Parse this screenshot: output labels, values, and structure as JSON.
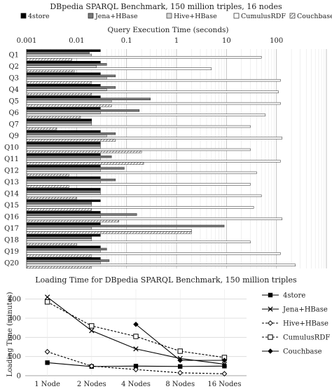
{
  "chart_data": [
    {
      "type": "bar",
      "orientation": "horizontal",
      "title": "DBpedia SPARQL Benchmark, 150 million triples, 16 nodes",
      "xlabel": "Query Execution Time (seconds)",
      "xscale": "log",
      "xlim": [
        0.001,
        1000
      ],
      "xticks": [
        "0.001",
        "0.01",
        "0.1",
        "1",
        "10",
        "100"
      ],
      "grid": true,
      "legend_position": "top",
      "categories": [
        "Q1",
        "Q2",
        "Q3",
        "Q4",
        "Q5",
        "Q6",
        "Q7",
        "Q9",
        "Q10",
        "Q11",
        "Q12",
        "Q13",
        "Q14",
        "Q15",
        "Q16",
        "Q17",
        "Q18",
        "Q19",
        "Q20"
      ],
      "series": [
        {
          "name": "4store",
          "pattern": "solid-black",
          "values": [
            0.03,
            0.03,
            0.03,
            0.03,
            0.03,
            0.03,
            0.02,
            0.03,
            0.03,
            0.03,
            0.03,
            0.03,
            0.03,
            0.03,
            0.03,
            0.03,
            0.03,
            0.03,
            0.03
          ]
        },
        {
          "name": "Jena+HBase",
          "pattern": "solid-dark-gray",
          "values": [
            0.018,
            0.04,
            0.06,
            0.06,
            0.3,
            0.18,
            0.02,
            0.06,
            0.03,
            0.05,
            0.09,
            0.06,
            0.03,
            0.02,
            0.16,
            9,
            0.02,
            0.04,
            0.045
          ]
        },
        {
          "name": "Hive+HBase",
          "pattern": "light-gray",
          "values": [
            0.02,
            0.025,
            0.04,
            0.04,
            0.05,
            0.03,
            0.02,
            0.04,
            0.03,
            0.03,
            0.03,
            0.03,
            0.03,
            0.02,
            0.03,
            0.02,
            0.02,
            0.03,
            0.03
          ]
        },
        {
          "name": "CumulusRDF",
          "pattern": "white-outline",
          "values": [
            50,
            5,
            120,
            110,
            120,
            60,
            30,
            130,
            30,
            120,
            40,
            30,
            50,
            35,
            130,
            2,
            30,
            120,
            240
          ]
        },
        {
          "name": "Couchbase",
          "pattern": "hatched",
          "values": [
            0.008,
            0.009,
            0.02,
            0.02,
            0.05,
            0.012,
            0.004,
            0.06,
            0.2,
            0.22,
            0.007,
            0.007,
            0.01,
            0.02,
            0.07,
            2,
            0.01,
            0.02,
            0.02
          ]
        }
      ]
    },
    {
      "type": "line",
      "title": "Loading Time for DBpedia SPARQL Benchmark, 150 million triples",
      "ylabel": "Loading Time (minutes)",
      "ylim": [
        0,
        450
      ],
      "yticks": [
        "0",
        "100",
        "200",
        "300",
        "400"
      ],
      "categories": [
        "1 Node",
        "2 Nodes",
        "4 Nodes",
        "8 Nodes",
        "16 Nodes"
      ],
      "grid": true,
      "legend_position": "right",
      "series": [
        {
          "name": "4store",
          "marker": "square-filled",
          "dash": "solid",
          "values": [
            68,
            48,
            50,
            48,
            50
          ]
        },
        {
          "name": "Jena+HBase",
          "marker": "x",
          "dash": "solid",
          "values": [
            410,
            235,
            140,
            90,
            60
          ]
        },
        {
          "name": "Hive+HBase",
          "marker": "diamond-open",
          "dash": "dashed",
          "values": [
            125,
            50,
            32,
            15,
            10
          ]
        },
        {
          "name": "CumulusRDF",
          "marker": "square-open",
          "dash": "dashed",
          "values": [
            385,
            260,
            205,
            128,
            95
          ]
        },
        {
          "name": "Couchbase",
          "marker": "diamond-filled",
          "dash": "solid",
          "values": [
            null,
            null,
            268,
            80,
            80
          ]
        }
      ]
    }
  ]
}
